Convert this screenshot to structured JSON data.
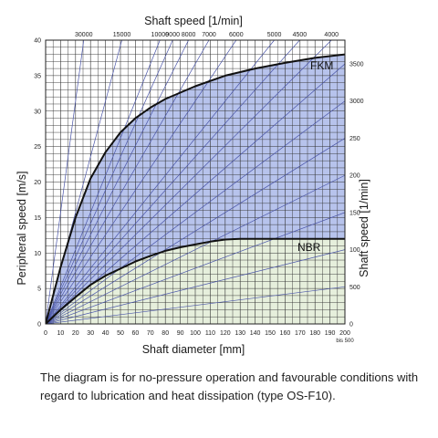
{
  "chart_data": {
    "type": "area",
    "title": "",
    "xlabel": "Shaft diameter [mm]",
    "ylabel": "Peripheral speed [m/s]",
    "top_axis_title": "Shaft speed [1/min]",
    "right_axis_title": "Shaft speed [1/min]",
    "xlim": [
      0,
      200
    ],
    "ylim": [
      0,
      40
    ],
    "grid": true,
    "x_ticks": [
      "0",
      "10",
      "20",
      "30",
      "40",
      "50",
      "60",
      "70",
      "80",
      "90",
      "100",
      "110",
      "120",
      "130",
      "140",
      "150",
      "160",
      "170",
      "180",
      "190",
      "200"
    ],
    "x_tick_extra": "bis 500",
    "y_ticks": [
      "0",
      "5",
      "10",
      "15",
      "20",
      "25",
      "30",
      "35",
      "40"
    ],
    "speed_lines_rpm": [
      500,
      1000,
      1500,
      2000,
      2500,
      3000,
      3500,
      4000,
      4500,
      5000,
      6000,
      7000,
      8000,
      9000,
      10000,
      15000,
      30000
    ],
    "top_speed_labels": [
      "30000",
      "15000",
      "10000",
      "9000",
      "8000",
      "7000",
      "6000",
      "5000",
      "4500",
      "4000"
    ],
    "right_speed_labels": [
      "3500",
      "3000",
      "250",
      "200",
      "150",
      "100",
      "500",
      "0"
    ],
    "series": [
      {
        "name": "FKM",
        "color": "#b7c3ec",
        "points": [
          [
            0,
            0
          ],
          [
            5,
            4
          ],
          [
            10,
            8
          ],
          [
            15,
            11.5
          ],
          [
            20,
            15
          ],
          [
            30,
            20.5
          ],
          [
            40,
            24.2
          ],
          [
            50,
            27
          ],
          [
            60,
            29
          ],
          [
            70,
            30.5
          ],
          [
            80,
            31.7
          ],
          [
            90,
            32.6
          ],
          [
            100,
            33.5
          ],
          [
            120,
            35
          ],
          [
            140,
            36
          ],
          [
            160,
            36.8
          ],
          [
            180,
            37.5
          ],
          [
            200,
            38
          ]
        ]
      },
      {
        "name": "NBR",
        "color": "#e6efdc",
        "points": [
          [
            0,
            0
          ],
          [
            10,
            2
          ],
          [
            20,
            3.8
          ],
          [
            30,
            5.5
          ],
          [
            40,
            6.8
          ],
          [
            50,
            7.8
          ],
          [
            60,
            8.8
          ],
          [
            70,
            9.6
          ],
          [
            80,
            10.3
          ],
          [
            90,
            10.8
          ],
          [
            100,
            11.2
          ],
          [
            110,
            11.6
          ],
          [
            120,
            11.9
          ],
          [
            130,
            12
          ],
          [
            200,
            12
          ]
        ]
      }
    ]
  },
  "caption": "The diagram is for no-pressure operation and favourable conditions with regard to lubrication and heat dissipation (type OS-F10)."
}
